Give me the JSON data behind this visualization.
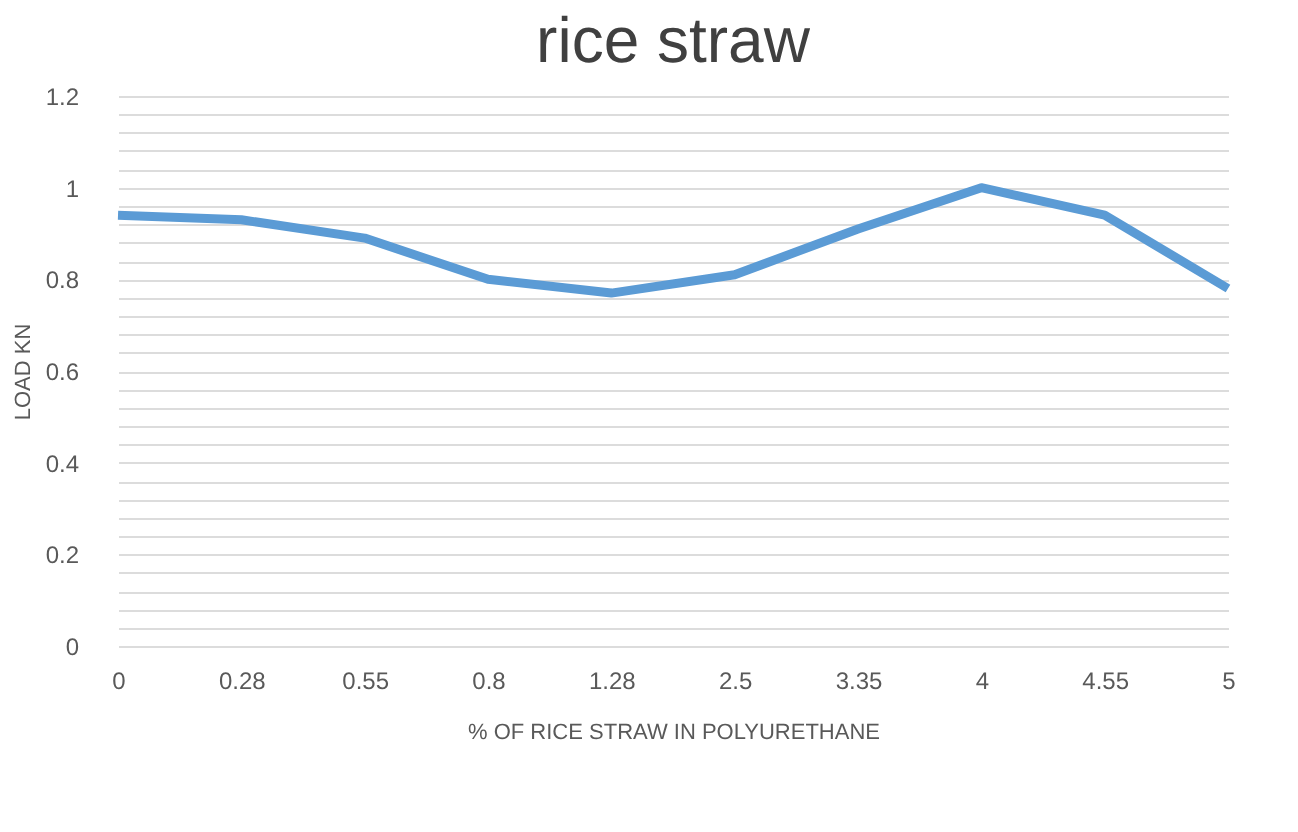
{
  "chart_data": {
    "type": "line",
    "title": "rice straw",
    "xlabel": "% OF RICE STRAW IN POLYURETHANE",
    "ylabel": "LOAD KN",
    "categories": [
      "0",
      "0.28",
      "0.55",
      "0.8",
      "1.28",
      "2.5",
      "3.35",
      "4",
      "4.55",
      "5"
    ],
    "series": [
      {
        "color": "#5b9bd5",
        "values": [
          0.94,
          0.93,
          0.89,
          0.8,
          0.77,
          0.81,
          0.91,
          1.0,
          0.94,
          0.78
        ]
      }
    ],
    "ylim": [
      0,
      1.2
    ],
    "yticks": [
      0,
      {
        "value": 0.04,
        "label": null
      },
      {
        "value": 0.08,
        "label": null
      },
      {
        "value": 0.12,
        "label": null
      },
      {
        "value": 0.16,
        "label": null
      },
      0.2,
      {
        "value": 0.24,
        "label": null
      },
      {
        "value": 0.28,
        "label": null
      },
      {
        "value": 0.32,
        "label": null
      },
      {
        "value": 0.36,
        "label": null
      },
      0.4,
      {
        "value": 0.44,
        "label": null
      },
      {
        "value": 0.48,
        "label": null
      },
      {
        "value": 0.52,
        "label": null
      },
      {
        "value": 0.56,
        "label": null
      },
      0.6,
      {
        "value": 0.64,
        "label": null
      },
      {
        "value": 0.68,
        "label": null
      },
      {
        "value": 0.72,
        "label": null
      },
      {
        "value": 0.76,
        "label": null
      },
      0.8,
      {
        "value": 0.84,
        "label": null
      },
      {
        "value": 0.88,
        "label": null
      },
      {
        "value": 0.92,
        "label": null
      },
      {
        "value": 0.96,
        "label": null
      },
      1,
      {
        "value": 1.04,
        "label": null
      },
      {
        "value": 1.08,
        "label": null
      },
      {
        "value": 1.12,
        "label": null
      },
      {
        "value": 1.16,
        "label": null
      },
      1.2
    ],
    "grid": "y",
    "marker": "none",
    "line_style": "solid"
  }
}
